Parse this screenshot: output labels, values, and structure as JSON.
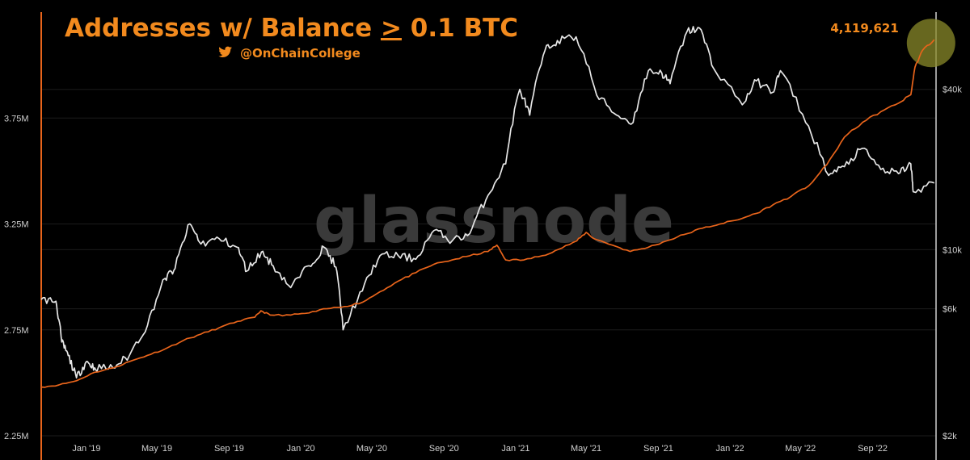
{
  "chart_data": {
    "type": "line",
    "title": "Addresses w/ Balance ≥ 0.1 BTC",
    "title_parts": {
      "before": "Addresses w/ Balance ",
      "symbol": ">",
      "after": " 0.1 BTC"
    },
    "subtitle": "@OnChainCollege",
    "watermark": "glassnode",
    "annotation": {
      "text": "4,119,621",
      "date": "2022-12-15",
      "value": 4119621
    },
    "x_ticks": [
      {
        "label": "Jan '19",
        "date": "2019-01-01"
      },
      {
        "label": "May '19",
        "date": "2019-05-01"
      },
      {
        "label": "Sep '19",
        "date": "2019-09-01"
      },
      {
        "label": "Jan '20",
        "date": "2020-01-01"
      },
      {
        "label": "May '20",
        "date": "2020-05-01"
      },
      {
        "label": "Sep '20",
        "date": "2020-09-01"
      },
      {
        "label": "Jan '21",
        "date": "2021-01-01"
      },
      {
        "label": "May '21",
        "date": "2021-05-01"
      },
      {
        "label": "Sep '21",
        "date": "2021-09-01"
      },
      {
        "label": "Jan '22",
        "date": "2022-01-01"
      },
      {
        "label": "May '22",
        "date": "2022-05-01"
      },
      {
        "label": "Sep '22",
        "date": "2022-09-01"
      }
    ],
    "xlim": [
      "2018-10-16",
      "2022-12-18"
    ],
    "y_left": {
      "ticks": [
        {
          "label": "2.25M",
          "value": 2250000
        },
        {
          "label": "2.75M",
          "value": 2750000
        },
        {
          "label": "3.25M",
          "value": 3250000
        },
        {
          "label": "3.75M",
          "value": 3750000
        }
      ],
      "ylim": [
        2250000,
        4250000
      ],
      "scale": "linear"
    },
    "y_right": {
      "ticks": [
        {
          "label": "$2k",
          "value": 2000
        },
        {
          "label": "$6k",
          "value": 6000
        },
        {
          "label": "$10k",
          "value": 10000
        },
        {
          "label": "$40k",
          "value": 40000
        }
      ],
      "ylim": [
        2000,
        78000
      ],
      "scale": "log"
    },
    "grid": true,
    "series": [
      {
        "axis": "left",
        "color": "#e8641b",
        "points": [
          [
            "2018-10-16",
            2480000
          ],
          [
            "2018-11-15",
            2490000
          ],
          [
            "2018-12-15",
            2510000
          ],
          [
            "2019-01-15",
            2550000
          ],
          [
            "2019-02-15",
            2570000
          ],
          [
            "2019-03-15",
            2600000
          ],
          [
            "2019-04-15",
            2630000
          ],
          [
            "2019-05-15",
            2660000
          ],
          [
            "2019-06-15",
            2700000
          ],
          [
            "2019-07-15",
            2730000
          ],
          [
            "2019-08-15",
            2760000
          ],
          [
            "2019-09-15",
            2790000
          ],
          [
            "2019-10-15",
            2810000
          ],
          [
            "2019-10-25",
            2840000
          ],
          [
            "2019-11-10",
            2820000
          ],
          [
            "2019-12-15",
            2820000
          ],
          [
            "2020-01-15",
            2830000
          ],
          [
            "2020-02-15",
            2850000
          ],
          [
            "2020-03-15",
            2860000
          ],
          [
            "2020-04-15",
            2880000
          ],
          [
            "2020-05-15",
            2930000
          ],
          [
            "2020-06-15",
            2980000
          ],
          [
            "2020-07-15",
            3020000
          ],
          [
            "2020-08-15",
            3060000
          ],
          [
            "2020-09-15",
            3080000
          ],
          [
            "2020-10-15",
            3100000
          ],
          [
            "2020-11-15",
            3120000
          ],
          [
            "2020-11-30",
            3150000
          ],
          [
            "2020-12-15",
            3080000
          ],
          [
            "2021-01-15",
            3080000
          ],
          [
            "2021-02-15",
            3100000
          ],
          [
            "2021-03-15",
            3130000
          ],
          [
            "2021-04-15",
            3170000
          ],
          [
            "2021-05-01",
            3210000
          ],
          [
            "2021-05-15",
            3180000
          ],
          [
            "2021-06-15",
            3150000
          ],
          [
            "2021-07-15",
            3120000
          ],
          [
            "2021-08-15",
            3140000
          ],
          [
            "2021-09-15",
            3170000
          ],
          [
            "2021-10-15",
            3200000
          ],
          [
            "2021-11-15",
            3230000
          ],
          [
            "2021-12-15",
            3250000
          ],
          [
            "2022-01-15",
            3270000
          ],
          [
            "2022-02-15",
            3300000
          ],
          [
            "2022-03-15",
            3340000
          ],
          [
            "2022-04-15",
            3380000
          ],
          [
            "2022-05-15",
            3430000
          ],
          [
            "2022-06-15",
            3530000
          ],
          [
            "2022-07-15",
            3660000
          ],
          [
            "2022-08-15",
            3730000
          ],
          [
            "2022-09-15",
            3780000
          ],
          [
            "2022-10-15",
            3820000
          ],
          [
            "2022-11-05",
            3860000
          ],
          [
            "2022-11-12",
            3990000
          ],
          [
            "2022-11-25",
            4070000
          ],
          [
            "2022-12-15",
            4119621
          ]
        ]
      },
      {
        "axis": "right",
        "color": "#e6e6e6",
        "points": [
          [
            "2018-10-16",
            6500
          ],
          [
            "2018-11-10",
            6400
          ],
          [
            "2018-11-20",
            4500
          ],
          [
            "2018-12-01",
            4000
          ],
          [
            "2018-12-15",
            3300
          ],
          [
            "2019-01-01",
            3800
          ],
          [
            "2019-01-15",
            3600
          ],
          [
            "2019-02-15",
            3600
          ],
          [
            "2019-03-15",
            4000
          ],
          [
            "2019-04-15",
            5200
          ],
          [
            "2019-05-15",
            7800
          ],
          [
            "2019-06-01",
            8500
          ],
          [
            "2019-06-26",
            12500
          ],
          [
            "2019-07-15",
            10500
          ],
          [
            "2019-08-15",
            11000
          ],
          [
            "2019-09-15",
            10200
          ],
          [
            "2019-10-01",
            8300
          ],
          [
            "2019-10-26",
            9800
          ],
          [
            "2019-11-15",
            8700
          ],
          [
            "2019-12-15",
            7200
          ],
          [
            "2020-01-15",
            8700
          ],
          [
            "2020-02-10",
            10200
          ],
          [
            "2020-03-01",
            8600
          ],
          [
            "2020-03-13",
            5000
          ],
          [
            "2020-04-15",
            7000
          ],
          [
            "2020-05-15",
            9500
          ],
          [
            "2020-06-15",
            9500
          ],
          [
            "2020-07-15",
            9200
          ],
          [
            "2020-08-15",
            11800
          ],
          [
            "2020-09-15",
            10800
          ],
          [
            "2020-10-15",
            11500
          ],
          [
            "2020-11-15",
            16000
          ],
          [
            "2020-12-15",
            21000
          ],
          [
            "2021-01-08",
            40000
          ],
          [
            "2021-01-25",
            32000
          ],
          [
            "2021-02-20",
            56000
          ],
          [
            "2021-03-13",
            61000
          ],
          [
            "2021-04-14",
            63000
          ],
          [
            "2021-05-19",
            38000
          ],
          [
            "2021-06-22",
            32000
          ],
          [
            "2021-07-20",
            30000
          ],
          [
            "2021-08-15",
            47000
          ],
          [
            "2021-09-07",
            46000
          ],
          [
            "2021-09-21",
            42000
          ],
          [
            "2021-10-20",
            66000
          ],
          [
            "2021-11-10",
            68000
          ],
          [
            "2021-12-04",
            48000
          ],
          [
            "2022-01-22",
            35000
          ],
          [
            "2022-02-15",
            43000
          ],
          [
            "2022-03-15",
            39000
          ],
          [
            "2022-03-28",
            47000
          ],
          [
            "2022-05-10",
            30000
          ],
          [
            "2022-06-18",
            19000
          ],
          [
            "2022-07-15",
            20500
          ],
          [
            "2022-08-14",
            24000
          ],
          [
            "2022-09-15",
            20000
          ],
          [
            "2022-10-15",
            19300
          ],
          [
            "2022-11-05",
            21000
          ],
          [
            "2022-11-09",
            16500
          ],
          [
            "2022-12-15",
            17800
          ]
        ]
      }
    ]
  }
}
